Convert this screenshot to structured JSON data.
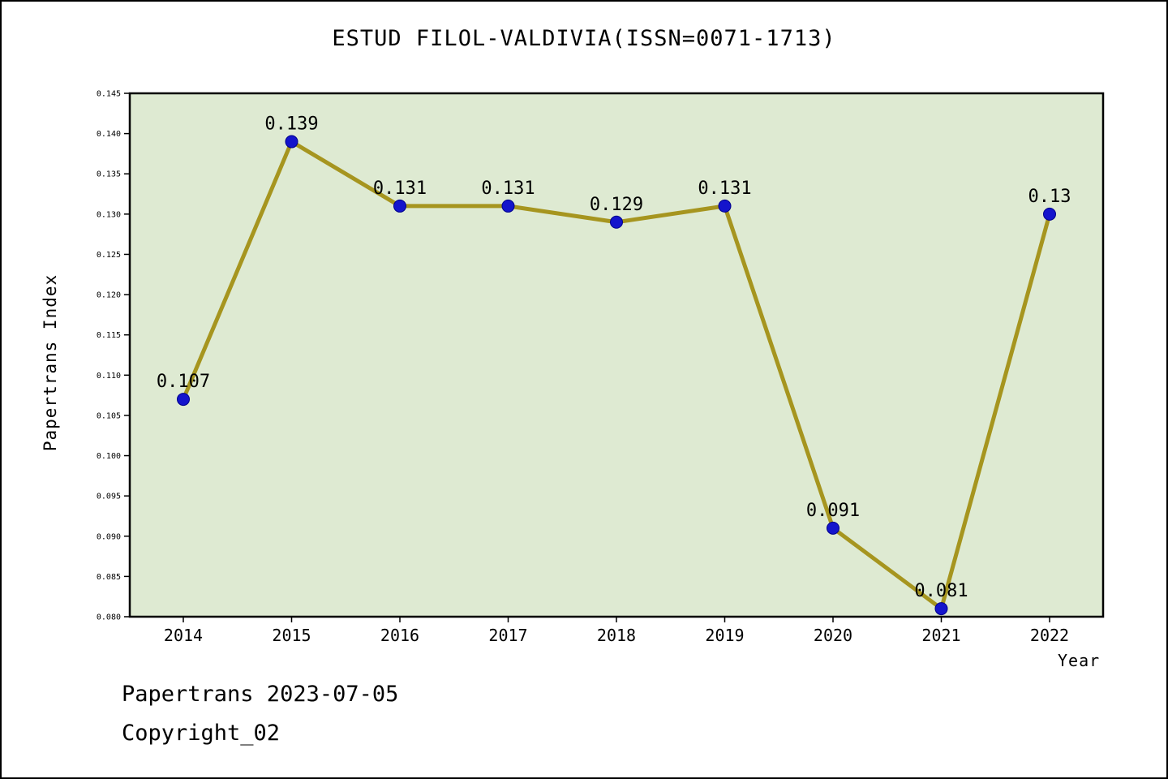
{
  "title": "ESTUD FILOL-VALDIVIA(ISSN=0071-1713)",
  "footer": {
    "line1": "Papertrans 2023-07-05",
    "line2": "Copyright_02"
  },
  "chart_data": {
    "type": "line",
    "title": "ESTUD FILOL-VALDIVIA(ISSN=0071-1713)",
    "xlabel": "Year",
    "ylabel": "Papertrans Index",
    "x": [
      2014,
      2015,
      2016,
      2017,
      2018,
      2019,
      2020,
      2021,
      2022
    ],
    "values": [
      0.107,
      0.139,
      0.131,
      0.131,
      0.129,
      0.131,
      0.091,
      0.081,
      0.13
    ],
    "point_labels": [
      "0.107",
      "0.139",
      "0.131",
      "0.131",
      "0.129",
      "0.131",
      "0.091",
      "0.081",
      "0.13"
    ],
    "ylim": [
      0.08,
      0.145
    ],
    "ytick_step": 0.005,
    "grid": false,
    "legend": null,
    "colors": {
      "line": "#a6951f",
      "marker": "#1414cc",
      "marker_edge": "#00008b",
      "plot_bg": "#deead2",
      "frame": "#000000",
      "text": "#000000"
    }
  }
}
